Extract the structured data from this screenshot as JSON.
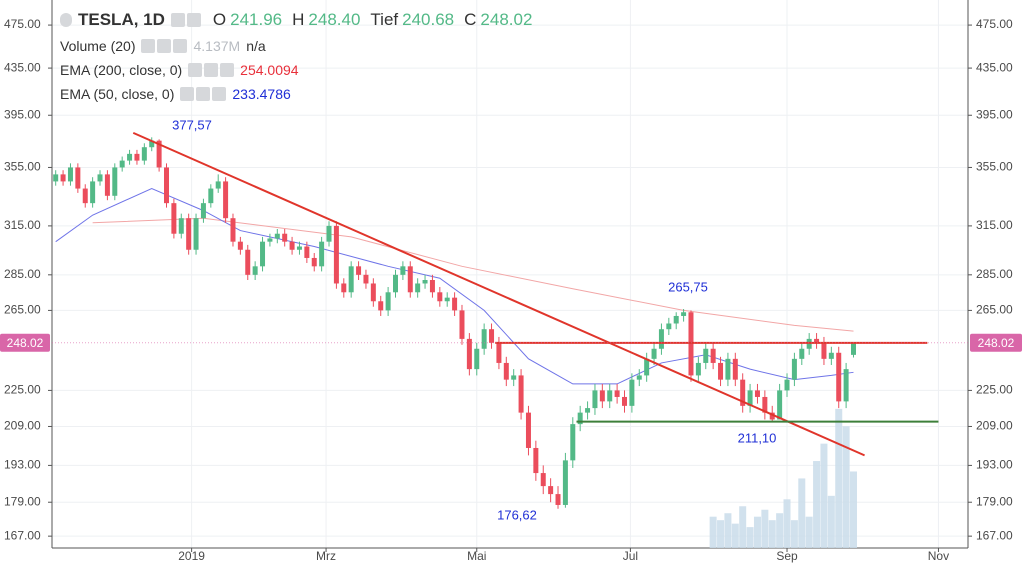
{
  "chart_data": {
    "type": "candlestick",
    "title": "TESLA, 1D",
    "ohlc_labels": [
      {
        "label": "O",
        "value": "241.96"
      },
      {
        "label": "H",
        "value": "248.40"
      },
      {
        "label": "Tief",
        "value": "240.68"
      },
      {
        "label": "C",
        "value": "248.02"
      }
    ],
    "up_color": "#53b987",
    "down_color": "#eb4d5c",
    "open": [
      345,
      350,
      345,
      355,
      340,
      330,
      345,
      350,
      335,
      355,
      360,
      365,
      360,
      370,
      375,
      355,
      330,
      310,
      320,
      300,
      320,
      330,
      340,
      345,
      320,
      305,
      300,
      285,
      290,
      305,
      307,
      310,
      305,
      300,
      302,
      295,
      290,
      305,
      315,
      280,
      275,
      290,
      285,
      280,
      270,
      265,
      275,
      285,
      290,
      275,
      280,
      282,
      275,
      270,
      272,
      265,
      250,
      235,
      245,
      255,
      248,
      238,
      230,
      232,
      215,
      200,
      190,
      185,
      182,
      178,
      195,
      210,
      215,
      217,
      225,
      220,
      225,
      222,
      218,
      230,
      232,
      240,
      245,
      255,
      258,
      262,
      264,
      232,
      238,
      245,
      238,
      230,
      240,
      230,
      218,
      225,
      222,
      215,
      212,
      225,
      230,
      240,
      245,
      250,
      248,
      240,
      243,
      220,
      241.96
    ],
    "high": [
      353,
      353,
      358,
      358,
      343,
      348,
      353,
      353,
      358,
      363,
      368,
      368,
      373,
      377.57,
      376,
      358,
      333,
      323,
      323,
      323,
      333,
      343,
      350,
      348,
      323,
      308,
      303,
      293,
      308,
      310,
      313,
      313,
      308,
      305,
      305,
      298,
      308,
      318,
      318,
      283,
      293,
      293,
      288,
      283,
      273,
      278,
      288,
      293,
      293,
      283,
      285,
      285,
      278,
      275,
      275,
      268,
      253,
      248,
      258,
      258,
      251,
      241,
      235,
      235,
      218,
      203,
      193,
      188,
      185,
      198,
      213,
      218,
      220,
      228,
      228,
      228,
      228,
      225,
      233,
      235,
      243,
      248,
      258,
      261,
      264,
      265.75,
      265,
      241,
      248,
      248,
      241,
      243,
      243,
      233,
      228,
      228,
      225,
      218,
      228,
      233,
      243,
      248,
      253,
      253,
      251,
      246,
      246,
      238,
      248.4
    ],
    "low": [
      342,
      342,
      342,
      337,
      327,
      327,
      342,
      332,
      332,
      352,
      357,
      357,
      357,
      367,
      352,
      327,
      307,
      307,
      297,
      297,
      317,
      327,
      337,
      317,
      302,
      297,
      282,
      282,
      287,
      302,
      304,
      302,
      297,
      297,
      292,
      287,
      287,
      302,
      277,
      272,
      272,
      282,
      277,
      267,
      262,
      262,
      272,
      282,
      272,
      272,
      277,
      272,
      267,
      267,
      262,
      247,
      232,
      232,
      242,
      245,
      235,
      227,
      227,
      212,
      197,
      187,
      182,
      179,
      176.62,
      177,
      192,
      207,
      212,
      214,
      217,
      217,
      219,
      215,
      215,
      227,
      229,
      237,
      242,
      252,
      255,
      259,
      229,
      229,
      235,
      235,
      227,
      227,
      227,
      215,
      215,
      219,
      212,
      211.1,
      212,
      222,
      227,
      237,
      242,
      245,
      237,
      237,
      217,
      217,
      240.68
    ],
    "close": [
      350,
      345,
      355,
      340,
      330,
      345,
      350,
      335,
      355,
      360,
      365,
      360,
      370,
      375,
      355,
      330,
      310,
      320,
      300,
      320,
      330,
      340,
      345,
      320,
      305,
      300,
      285,
      290,
      305,
      307,
      310,
      305,
      300,
      302,
      295,
      290,
      305,
      315,
      280,
      275,
      290,
      285,
      280,
      270,
      265,
      275,
      285,
      290,
      275,
      280,
      282,
      275,
      270,
      272,
      265,
      250,
      235,
      245,
      255,
      248,
      238,
      230,
      232,
      215,
      200,
      190,
      185,
      182,
      178,
      195,
      210,
      215,
      217,
      225,
      220,
      225,
      222,
      218,
      230,
      232,
      240,
      245,
      255,
      258,
      262,
      264,
      232,
      238,
      245,
      238,
      230,
      240,
      230,
      218,
      225,
      222,
      215,
      212,
      225,
      230,
      240,
      245,
      250,
      248,
      240,
      243,
      220,
      235,
      248.02
    ],
    "volume": {
      "name": "Volume (20)",
      "value_label": "4.137M",
      "extra": "n/a",
      "color": "#c9dcea",
      "x": [
        89,
        90,
        91,
        92,
        93,
        94,
        95,
        96,
        97,
        98,
        99,
        100,
        101,
        102,
        103,
        104,
        105,
        106,
        107,
        108
      ],
      "values": [
        9,
        8,
        10,
        7,
        12,
        6,
        9,
        11,
        8,
        10,
        14,
        8,
        20,
        9,
        25,
        30,
        15,
        40,
        35,
        22
      ],
      "ylim": [
        0,
        46
      ]
    },
    "series": [
      {
        "name": "EMA (200, close, 0)",
        "color": "#e8303b",
        "line_color": "#f2a6a6",
        "x": [
          5,
          20,
          40,
          55,
          70,
          85,
          100,
          108
        ],
        "values": [
          317,
          320,
          308,
          290,
          277,
          265,
          257,
          254.0094
        ]
      },
      {
        "name": "EMA (50, close, 0)",
        "color": "#1f2fd6",
        "line_color": "#6f74e8",
        "x": [
          0,
          5,
          13,
          20,
          25,
          35,
          45,
          52,
          58,
          64,
          70,
          76,
          82,
          88,
          94,
          100,
          105,
          108
        ],
        "values": [
          305,
          322,
          340,
          325,
          312,
          302,
          290,
          283,
          265,
          240,
          228,
          228,
          238,
          242,
          235,
          230,
          232,
          233.4786
        ]
      }
    ],
    "trendlines": [
      {
        "color": "#e0352b",
        "x": [
          10.5,
          109.5
        ],
        "values": [
          381,
          197
        ]
      },
      {
        "color": "#e0352b",
        "x": [
          59.5,
          118
        ],
        "values": [
          248,
          248
        ]
      },
      {
        "color": "#3d7f3a",
        "x": [
          70.5,
          119.5
        ],
        "values": [
          211.1,
          211.1
        ]
      }
    ],
    "annotations": [
      "377,57",
      "265,75",
      "211,10",
      "176,62"
    ],
    "xlim": [
      -0.5,
      123.5
    ],
    "xticks": [
      {
        "value": 18.4,
        "label": "2019"
      },
      {
        "value": 36.6,
        "label": "Mrz"
      },
      {
        "value": 57,
        "label": "Mai"
      },
      {
        "value": 77.8,
        "label": "Jul"
      },
      {
        "value": 99,
        "label": "Sep"
      },
      {
        "value": 119.5,
        "label": "Nov"
      }
    ],
    "ylim": [
      163,
      500
    ],
    "log_scale": true,
    "grid": true,
    "yticks": [
      {
        "value": 475,
        "label": "475.00"
      },
      {
        "value": 435,
        "label": "435.00"
      },
      {
        "value": 395,
        "label": "395.00"
      },
      {
        "value": 355,
        "label": "355.00"
      },
      {
        "value": 315,
        "label": "315.00"
      },
      {
        "value": 285,
        "label": "285.00"
      },
      {
        "value": 265,
        "label": "265.00"
      },
      {
        "value": 225,
        "label": "225.00"
      },
      {
        "value": 209,
        "label": "209.00"
      },
      {
        "value": 193,
        "label": "193.00"
      },
      {
        "value": 179,
        "label": "179.00"
      },
      {
        "value": 167,
        "label": "167.00"
      }
    ],
    "price_tag_color": "#d966a8"
  }
}
